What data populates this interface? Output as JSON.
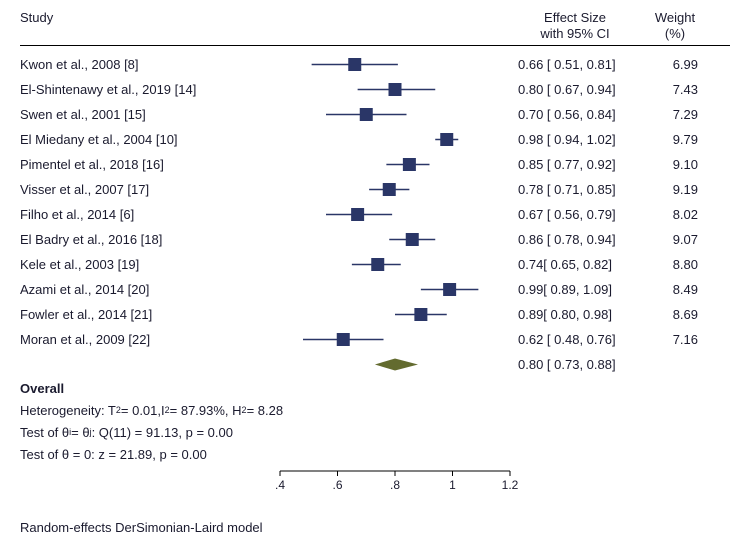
{
  "header": {
    "study": "Study",
    "effect_line1": "Effect Size",
    "effect_line2": "with 95% CI",
    "weight_line1": "Weight",
    "weight_line2": "(%)"
  },
  "plot": {
    "xmin": 0.4,
    "xmax": 1.2,
    "ticks": [
      0.4,
      0.6,
      0.8,
      1.0,
      1.2
    ],
    "tick_labels": [
      ".4",
      ".6",
      ".8",
      "1",
      "1.2"
    ],
    "marker_color": "#2a3667",
    "diamond_color": "#636b2f",
    "line_color": "#2a3667",
    "axis_color": "#000000",
    "marker_size": 13
  },
  "studies": [
    {
      "label": "Kwon et al., 2008 [8]",
      "est": 0.66,
      "lo": 0.51,
      "hi": 0.81,
      "effect_text": "0.66 [ 0.51, 0.81]",
      "weight": "6.99"
    },
    {
      "label": "El-Shintenawy et al., 2019 [14]",
      "est": 0.8,
      "lo": 0.67,
      "hi": 0.94,
      "effect_text": "0.80 [ 0.67, 0.94]",
      "weight": "7.43"
    },
    {
      "label": "Swen et al., 2001 [15]",
      "est": 0.7,
      "lo": 0.56,
      "hi": 0.84,
      "effect_text": "0.70 [ 0.56, 0.84]",
      "weight": "7.29"
    },
    {
      "label": "El Miedany et al., 2004 [10]",
      "est": 0.98,
      "lo": 0.94,
      "hi": 1.02,
      "effect_text": "0.98 [ 0.94, 1.02]",
      "weight": "9.79"
    },
    {
      "label": "Pimentel et al., 2018 [16]",
      "est": 0.85,
      "lo": 0.77,
      "hi": 0.92,
      "effect_text": "0.85 [ 0.77, 0.92]",
      "weight": "9.10"
    },
    {
      "label": "Visser et al., 2007 [17]",
      "est": 0.78,
      "lo": 0.71,
      "hi": 0.85,
      "effect_text": "0.78 [ 0.71, 0.85]",
      "weight": "9.19"
    },
    {
      "label": "Filho et al., 2014 [6]",
      "est": 0.67,
      "lo": 0.56,
      "hi": 0.79,
      "effect_text": "0.67 [ 0.56, 0.79]",
      "weight": "8.02"
    },
    {
      "label": "El Badry et al., 2016 [18]",
      "est": 0.86,
      "lo": 0.78,
      "hi": 0.94,
      "effect_text": "0.86 [ 0.78, 0.94]",
      "weight": "9.07"
    },
    {
      "label": "Kele et al., 2003 [19]",
      "est": 0.74,
      "lo": 0.65,
      "hi": 0.82,
      "effect_text": "0.74[ 0.65, 0.82]",
      "weight": "8.80"
    },
    {
      "label": "Azami et al., 2014 [20]",
      "est": 0.99,
      "lo": 0.89,
      "hi": 1.09,
      "effect_text": "0.99[ 0.89, 1.09]",
      "weight": "8.49"
    },
    {
      "label": "Fowler et al.,  2014 [21]",
      "est": 0.89,
      "lo": 0.8,
      "hi": 0.98,
      "effect_text": "0.89[ 0.80, 0.98]",
      "weight": "8.69"
    },
    {
      "label": "Moran et al., 2009 [22]",
      "est": 0.62,
      "lo": 0.48,
      "hi": 0.76,
      "effect_text": "0.62 [ 0.48, 0.76]",
      "weight": "7.16"
    }
  ],
  "overall": {
    "label": "Overall",
    "est": 0.8,
    "lo": 0.73,
    "hi": 0.88,
    "effect_text": "0.80 [ 0.73, 0.88]"
  },
  "stats": {
    "het_a": "Heterogeneity: T",
    "het_b": " = 0.01,I",
    "het_c": " = 87.93%, H",
    "het_d": " = 8.28",
    "theta_a": "Test of θ",
    "theta_b": " = θ",
    "theta_c": ": Q(11) = 91.13, p = 0.00",
    "theta0": "Test of θ = 0: z = 21.89, p = 0.00"
  },
  "footnote": "Random-effects DerSimonian-Laird model"
}
